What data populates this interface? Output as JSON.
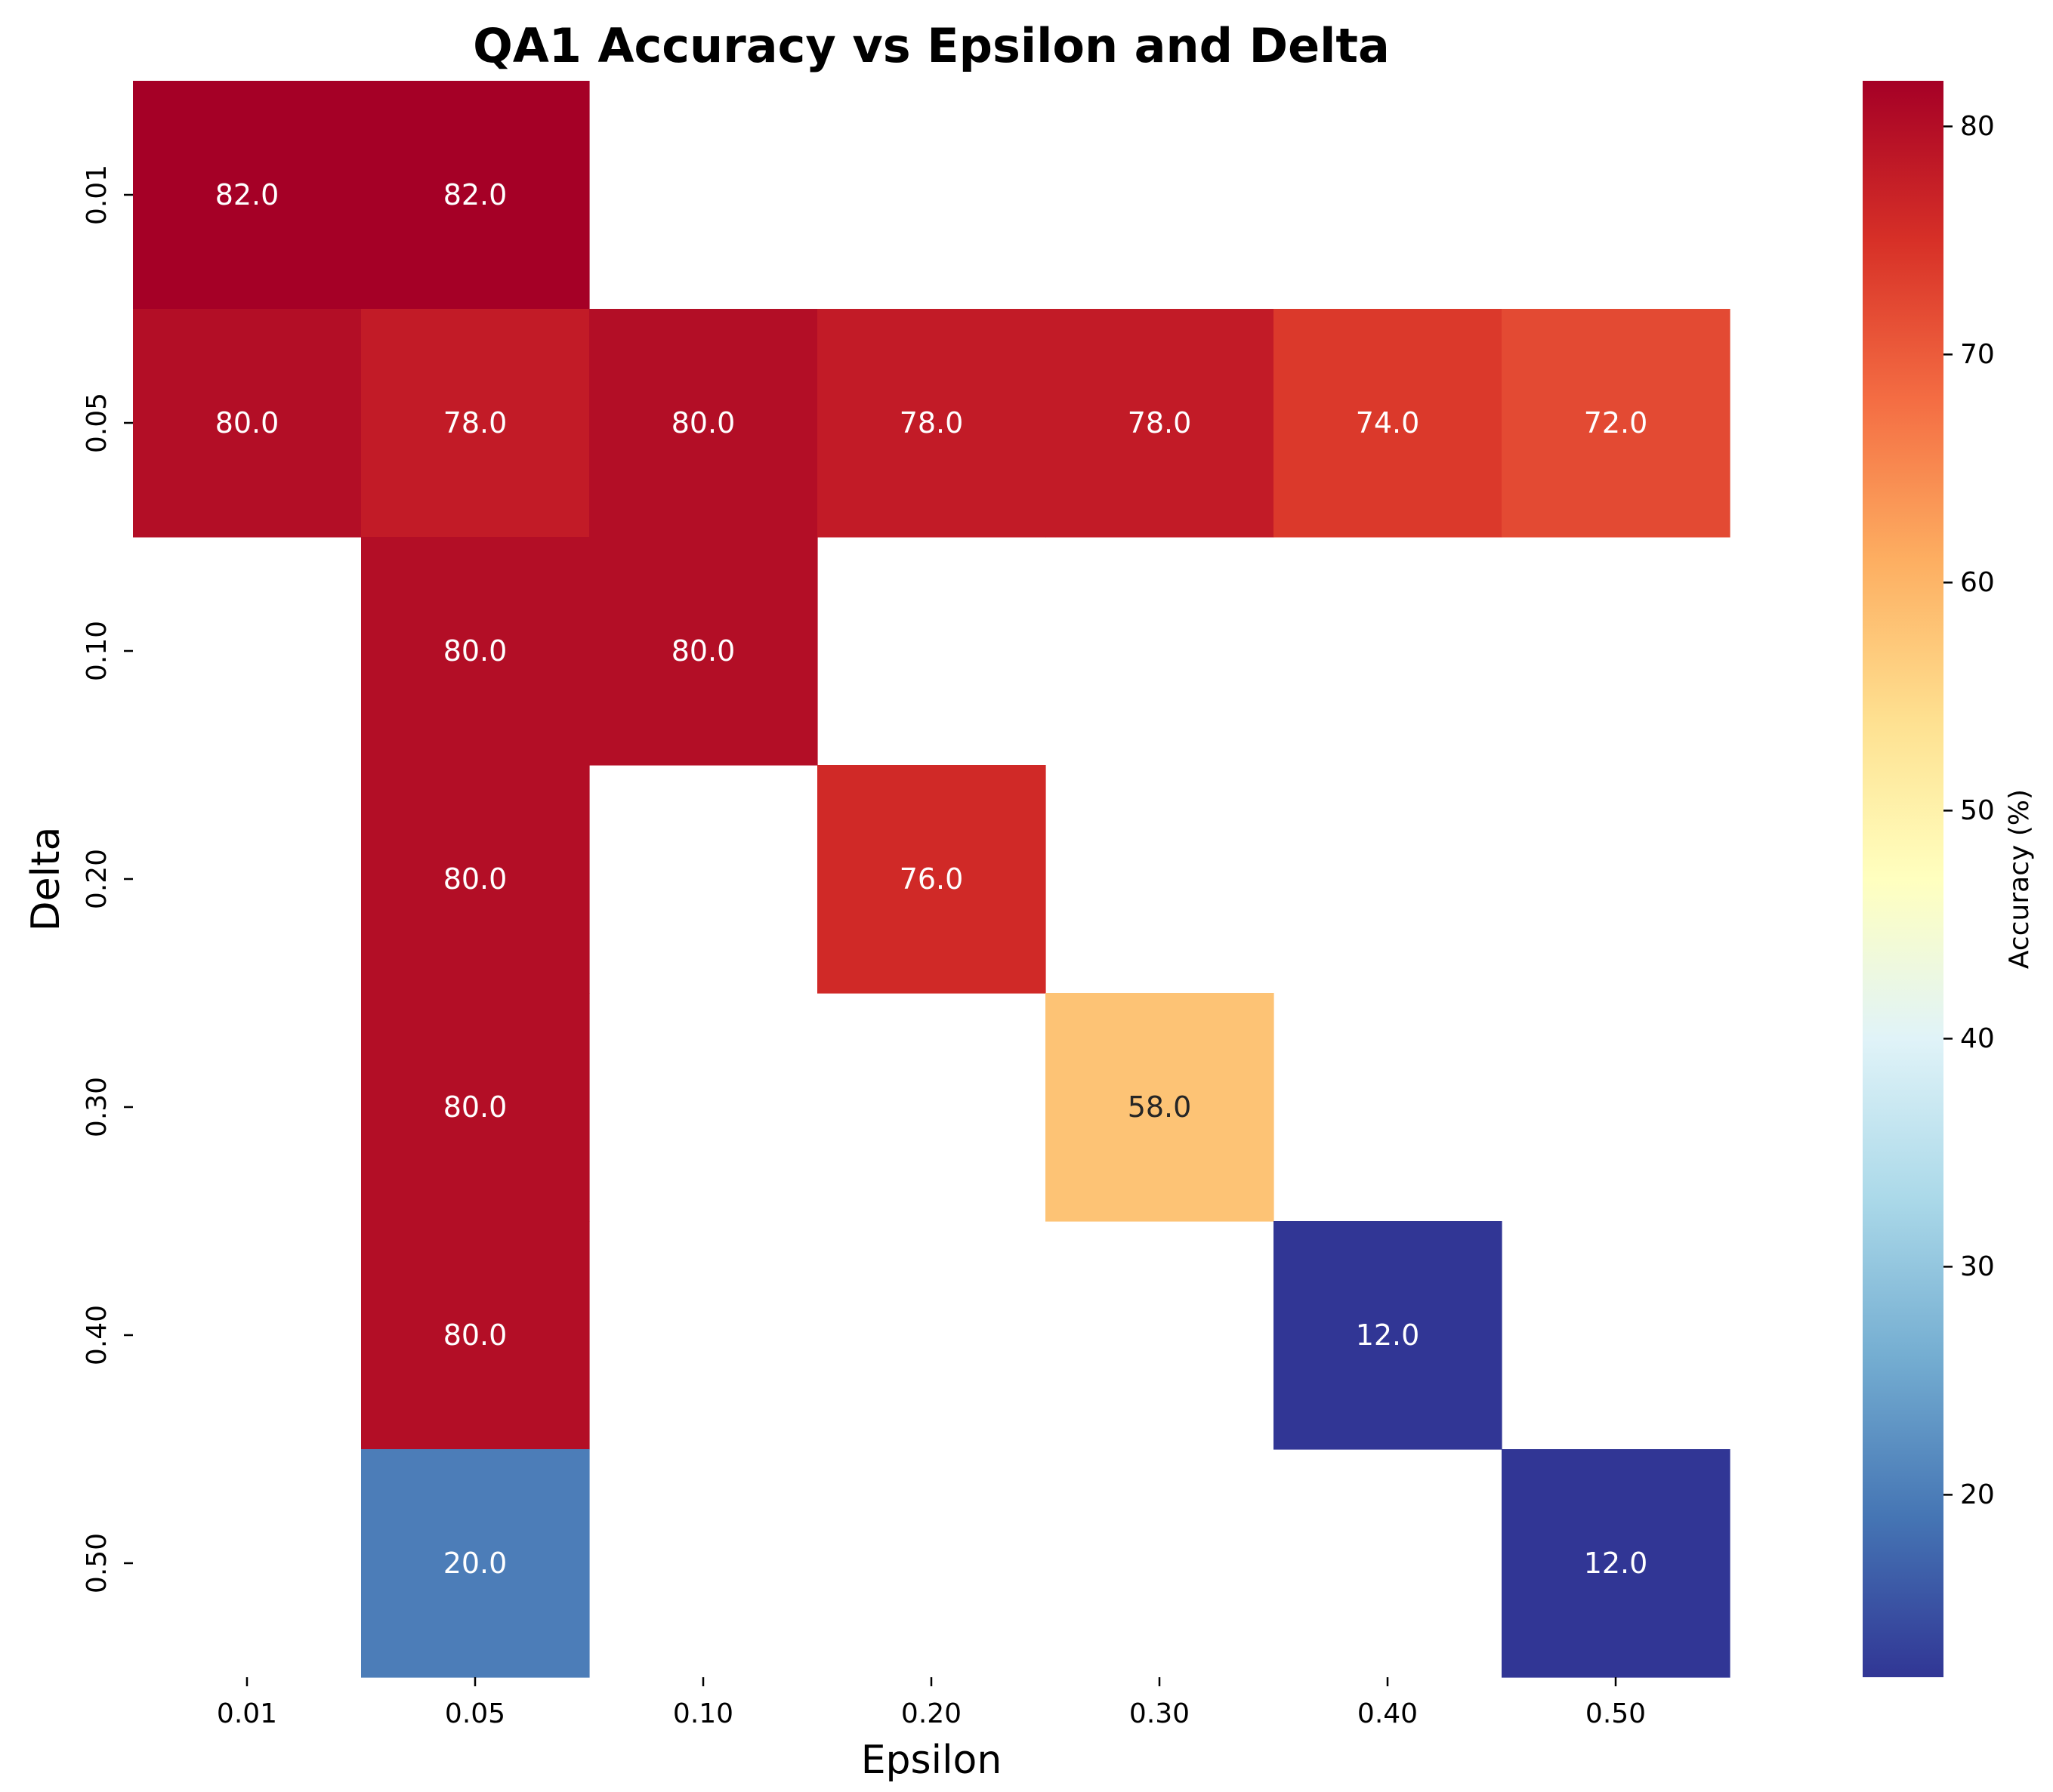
{
  "chart_data": {
    "type": "heatmap",
    "title": "QA1 Accuracy vs Epsilon and Delta",
    "xlabel": "Epsilon",
    "ylabel": "Delta",
    "x_categories": [
      "0.01",
      "0.05",
      "0.10",
      "0.20",
      "0.30",
      "0.40",
      "0.50"
    ],
    "y_categories": [
      "0.01",
      "0.05",
      "0.10",
      "0.20",
      "0.30",
      "0.40",
      "0.50"
    ],
    "values": [
      [
        82.0,
        82.0,
        null,
        null,
        null,
        null,
        null
      ],
      [
        80.0,
        78.0,
        80.0,
        78.0,
        78.0,
        74.0,
        72.0
      ],
      [
        null,
        80.0,
        80.0,
        null,
        null,
        null,
        null
      ],
      [
        null,
        80.0,
        null,
        76.0,
        null,
        null,
        null
      ],
      [
        null,
        80.0,
        null,
        null,
        58.0,
        null,
        null
      ],
      [
        null,
        80.0,
        null,
        null,
        null,
        12.0,
        null
      ],
      [
        null,
        20.0,
        null,
        null,
        null,
        null,
        12.0
      ]
    ],
    "colormap": "RdYlBu_r",
    "value_range": [
      12,
      82
    ],
    "colorbar": {
      "label": "Accuracy (%)",
      "ticks": [
        20,
        30,
        40,
        50,
        60,
        70,
        80
      ]
    },
    "annotation_format": "0.0",
    "grid": false
  }
}
